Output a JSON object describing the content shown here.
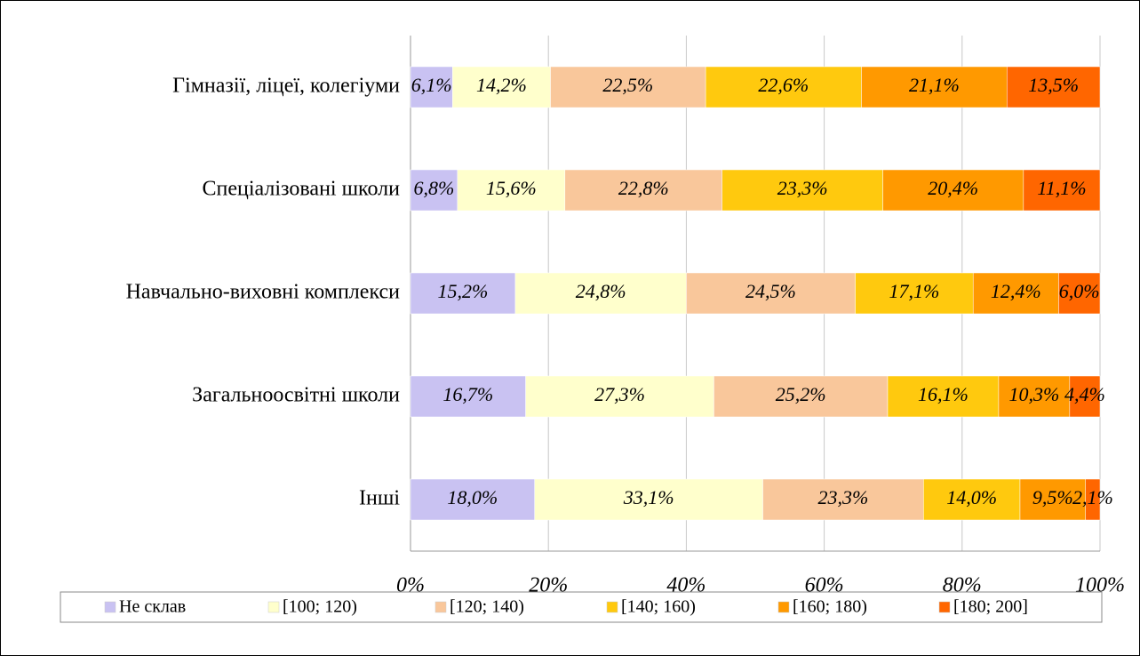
{
  "chart_data": {
    "type": "stacked_bar_horizontal",
    "categories": [
      "Гімназії, ліцеї, колегіуми",
      "Спеціалізовані школи",
      "Навчально-виховні комплекси",
      "Загальноосвітні школи",
      "Інші"
    ],
    "series": [
      {
        "name": "Не склав",
        "color": "#c9c2f2",
        "values": [
          6.1,
          6.8,
          15.2,
          16.7,
          18.0
        ],
        "value_labels": [
          "6,1%",
          "6,8%",
          "15,2%",
          "16,7%",
          "18,0%"
        ]
      },
      {
        "name": "[100; 120)",
        "color": "#ffffcc",
        "values": [
          14.2,
          15.6,
          24.8,
          27.3,
          33.1
        ],
        "value_labels": [
          "14,2%",
          "15,6%",
          "24,8%",
          "27,3%",
          "33,1%"
        ]
      },
      {
        "name": "[120; 140)",
        "color": "#f9c79b",
        "values": [
          22.5,
          22.8,
          24.5,
          25.2,
          23.3
        ],
        "value_labels": [
          "22,5%",
          "22,8%",
          "24,5%",
          "25,2%",
          "23,3%"
        ]
      },
      {
        "name": "[140; 160)",
        "color": "#ffc90e",
        "values": [
          22.6,
          23.3,
          17.1,
          16.1,
          14.0
        ],
        "value_labels": [
          "22,6%",
          "23,3%",
          "17,1%",
          "16,1%",
          "14,0%"
        ]
      },
      {
        "name": "[160; 180)",
        "color": "#ff9900",
        "values": [
          21.1,
          20.4,
          12.4,
          10.3,
          9.5
        ],
        "value_labels": [
          "21,1%",
          "20,4%",
          "12,4%",
          "10,3%",
          "9,5%"
        ]
      },
      {
        "name": "[180; 200]",
        "color": "#ff6600",
        "values": [
          13.5,
          11.1,
          6.0,
          4.4,
          2.1
        ],
        "value_labels": [
          "13,5%",
          "11,1%",
          "6,0%",
          "4,4%",
          "2,1%"
        ]
      }
    ],
    "xlim": [
      0,
      100
    ],
    "xticks": [
      {
        "value": 0,
        "label": "0%"
      },
      {
        "value": 20,
        "label": "20%"
      },
      {
        "value": 40,
        "label": "40%"
      },
      {
        "value": 60,
        "label": "60%"
      },
      {
        "value": 80,
        "label": "80%"
      },
      {
        "value": 100,
        "label": "100%"
      }
    ],
    "grid": true,
    "legend": "bottom"
  }
}
